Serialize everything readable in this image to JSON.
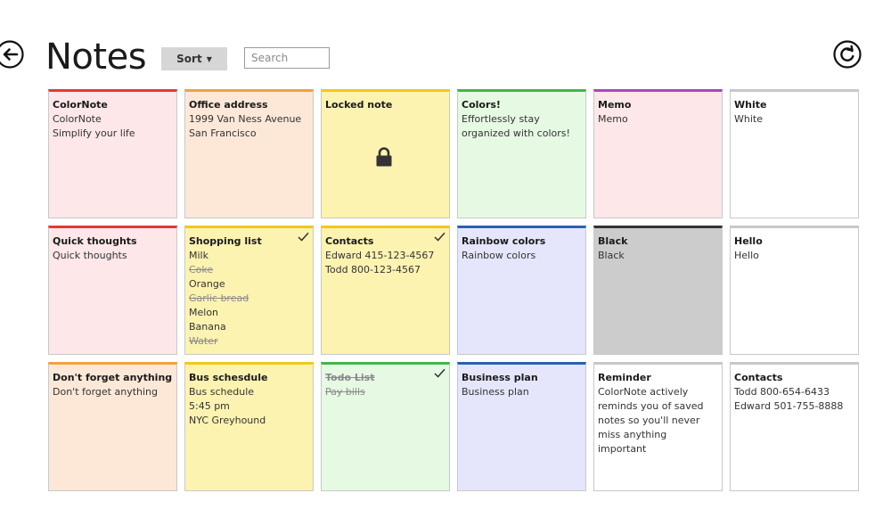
{
  "header": {
    "title": "Notes",
    "sort_label": "Sort",
    "search_placeholder": "Search"
  },
  "colors": {
    "red": {
      "bg": "#fde7e9",
      "accent": "#e53935"
    },
    "orange": {
      "bg": "#fde8d7",
      "accent": "#f0a33e"
    },
    "yellow": {
      "bg": "#fdf3b0",
      "accent": "#f2c81a"
    },
    "green": {
      "bg": "#e6fae3",
      "accent": "#43b549"
    },
    "purple": {
      "bg": "#fde7e9",
      "accent": "#ab47bc"
    },
    "white": {
      "bg": "#ffffff",
      "accent": "#c8c8c8"
    },
    "blue": {
      "bg": "#e5e6fb",
      "accent": "#2b5fb3"
    },
    "black": {
      "bg": "#cccccc",
      "accent": "#333333"
    }
  },
  "notes": [
    {
      "title": "ColorNote",
      "color": "red",
      "lines": [
        "ColorNote",
        "Simplify your life"
      ]
    },
    {
      "title": "Office address",
      "color": "orange",
      "lines": [
        "1999 Van Ness Avenue",
        "San Francisco"
      ]
    },
    {
      "title": "Locked note",
      "color": "yellow",
      "locked": true,
      "icon": "lock-icon",
      "lines": []
    },
    {
      "title": "Colors!",
      "color": "green",
      "text": "Effortlessly stay organized with colors!"
    },
    {
      "title": "Memo",
      "color": "purple",
      "lines": [
        "Memo"
      ]
    },
    {
      "title": "White",
      "color": "white",
      "lines": [
        "White"
      ]
    },
    {
      "title": "Quick thoughts",
      "color": "red",
      "lines": [
        "Quick thoughts"
      ]
    },
    {
      "title": "Shopping list",
      "color": "yellow",
      "checked": true,
      "icon": "checkmark-icon",
      "items": [
        {
          "text": "Milk",
          "done": false
        },
        {
          "text": "Coke",
          "done": true
        },
        {
          "text": "Orange",
          "done": false
        },
        {
          "text": "Garlic bread",
          "done": true
        },
        {
          "text": "Melon",
          "done": false
        },
        {
          "text": "Banana",
          "done": false
        },
        {
          "text": "Water",
          "done": true
        }
      ]
    },
    {
      "title": "Contacts",
      "color": "yellow",
      "checked": true,
      "icon": "checkmark-icon",
      "lines": [
        "Edward 415-123-4567",
        "Todd 800-123-4567"
      ]
    },
    {
      "title": "Rainbow colors",
      "color": "blue",
      "lines": [
        "Rainbow colors"
      ]
    },
    {
      "title": "Black",
      "color": "black",
      "lines": [
        "Black"
      ]
    },
    {
      "title": "Hello",
      "color": "white",
      "lines": [
        "Hello"
      ]
    },
    {
      "title": "Don't forget anything",
      "color": "orange",
      "lines": [
        "Don't forget anything"
      ]
    },
    {
      "title": "Bus schesdule",
      "color": "yellow",
      "lines": [
        "Bus schedule",
        "5:45 pm",
        "NYC Greyhound"
      ]
    },
    {
      "title": "Todo List",
      "color": "green",
      "checked": true,
      "title_done": true,
      "icon": "checkmark-icon",
      "items": [
        {
          "text": "Pay bills",
          "done": true
        }
      ]
    },
    {
      "title": "Business plan",
      "color": "blue",
      "lines": [
        "Business plan"
      ]
    },
    {
      "title": "Reminder",
      "color": "white",
      "text": "ColorNote actively reminds you of saved notes so you'll never miss anything important"
    },
    {
      "title": "Contacts",
      "color": "white",
      "lines": [
        "Todd 800-654-6433",
        "Edward 501-755-8888"
      ]
    }
  ]
}
